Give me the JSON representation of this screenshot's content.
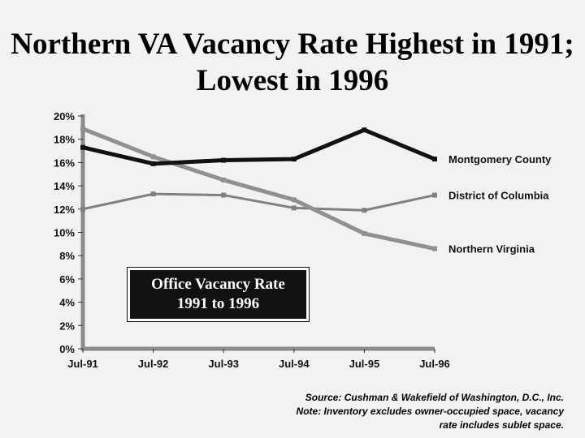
{
  "title_lines": [
    "Northern VA Vacancy Rate Highest in 1991;",
    "Lowest in 1996"
  ],
  "inset_lines": [
    "Office Vacancy Rate",
    "1991 to 1996"
  ],
  "source_lines": [
    "Source: Cushman & Wakefield of Washington, D.C., Inc.",
    "Note: Inventory excludes owner-occupied space, vacancy",
    "rate includes sublet space."
  ],
  "chart_data": {
    "type": "line",
    "title": "Northern VA Vacancy Rate Highest in 1991; Lowest in 1996",
    "categories": [
      "Jul-91",
      "Jul-92",
      "Jul-93",
      "Jul-94",
      "Jul-95",
      "Jul-96"
    ],
    "y_tick_labels": [
      "0%",
      "2%",
      "4%",
      "6%",
      "8%",
      "10%",
      "12%",
      "14%",
      "16%",
      "18%",
      "20%"
    ],
    "ylim": [
      0,
      20
    ],
    "grid": false,
    "legend": "labels at line ends (right)",
    "series": [
      {
        "name": "Montgomery County",
        "values": [
          17.3,
          15.9,
          16.2,
          16.3,
          18.8,
          16.3
        ],
        "color": "#111111"
      },
      {
        "name": "District of Columbia",
        "values": [
          12.0,
          13.3,
          13.2,
          12.1,
          11.9,
          13.2
        ],
        "color": "#808080"
      },
      {
        "name": "Northern Virginia",
        "values": [
          18.9,
          16.5,
          14.5,
          12.8,
          9.9,
          8.6
        ],
        "color": "#909090"
      }
    ]
  }
}
